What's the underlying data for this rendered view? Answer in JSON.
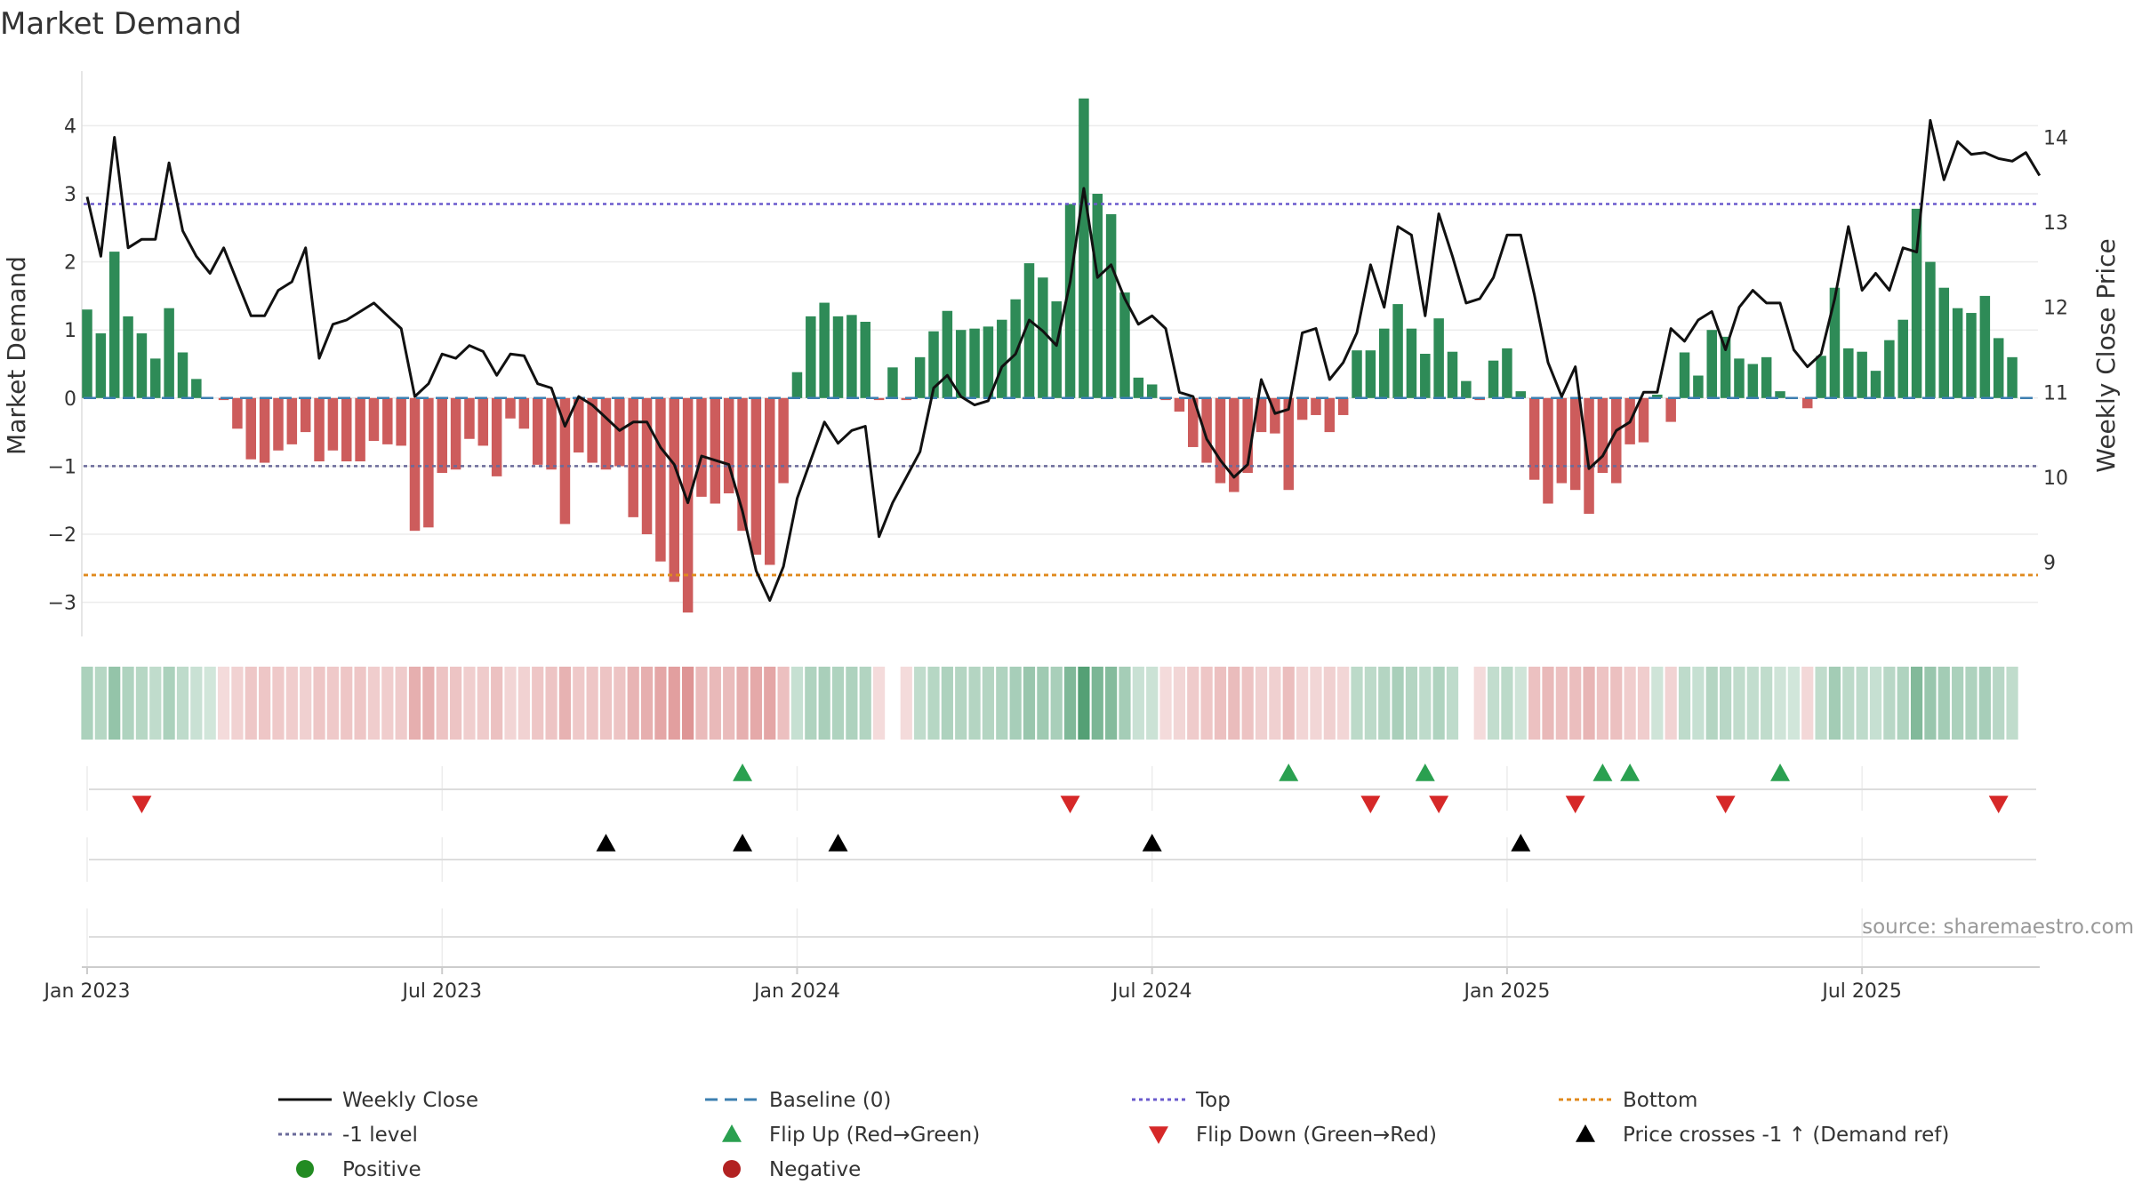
{
  "chart_data": {
    "type": "bar+line",
    "title": "Market Demand",
    "ylabel_left": "Market Demand",
    "ylabel_right": "Weekly Close Price",
    "ylim_left": [
      -3.5,
      4.5
    ],
    "ylim_right": [
      8.4,
      14.7
    ],
    "yticks_left": [
      4,
      3,
      2,
      1,
      0,
      -1,
      -2,
      -3
    ],
    "yticks_left_labels": [
      "4",
      "3",
      "2",
      "1",
      "0",
      "−1",
      "−2",
      "−3"
    ],
    "yticks_right": [
      14,
      13,
      12,
      11,
      10,
      9
    ],
    "x_tick_labels": [
      "Jan 2023",
      "Jul 2023",
      "Jan 2024",
      "Jul 2024",
      "Jan 2025",
      "Jul 2025"
    ],
    "x_tick_weeks": [
      0,
      26,
      52,
      78,
      104,
      130
    ],
    "reference_lines": {
      "top": 2.85,
      "minus_one": -1.0,
      "bottom": -2.6,
      "baseline": 0
    },
    "week_offset": -2,
    "demand": [
      1.3,
      0.95,
      2.15,
      1.2,
      0.95,
      0.58,
      1.32,
      0.67,
      0.28,
      0,
      -0.03,
      -0.45,
      -0.9,
      -0.95,
      -0.77,
      -0.68,
      -0.5,
      -0.93,
      -0.77,
      -0.93,
      -0.93,
      -0.63,
      -0.68,
      -0.7,
      -1.95,
      -1.9,
      -1.1,
      -1.05,
      -0.6,
      -0.7,
      -1.15,
      -0.3,
      -0.45,
      -0.98,
      -1.05,
      -1.85,
      -0.8,
      -0.95,
      -1.05,
      -1.0,
      -1.75,
      -2.0,
      -2.4,
      -2.7,
      -3.15,
      -1.45,
      -1.55,
      -1.4,
      -1.95,
      -2.3,
      -2.45,
      -1.25,
      0.38,
      1.2,
      1.4,
      1.2,
      1.22,
      1.12,
      -0.03,
      0.45,
      -0.03,
      0.6,
      0.98,
      1.28,
      1.0,
      1.02,
      1.05,
      1.15,
      1.45,
      1.98,
      1.77,
      1.42,
      2.85,
      4.4,
      3.0,
      2.7,
      1.55,
      0.3,
      0.2,
      -0.03,
      -0.2,
      -0.72,
      -0.95,
      -1.25,
      -1.38,
      -1.1,
      -0.5,
      -0.52,
      -1.35,
      -0.32,
      -0.25,
      -0.5,
      -0.25,
      0.7,
      0.7,
      1.02,
      1.38,
      1.02,
      0.65,
      1.17,
      0.68,
      0.25,
      -0.03,
      0.55,
      0.73,
      0.1,
      -1.2,
      -1.55,
      -1.25,
      -1.35,
      -1.7,
      -1.1,
      -1.25,
      -0.68,
      -0.65,
      0.05,
      -0.35,
      0.67,
      0.33,
      1.0,
      0.9,
      0.58,
      0.5,
      0.6,
      0.1,
      0,
      -0.15,
      0.62,
      1.62,
      0.73,
      0.68,
      0.4,
      0.85,
      1.15,
      2.78,
      2.0,
      1.62,
      1.32,
      1.25,
      1.5,
      0.88,
      0.6
    ],
    "price": [
      13.3,
      12.6,
      14.0,
      12.7,
      12.8,
      12.8,
      13.7,
      12.9,
      12.6,
      12.4,
      12.7,
      12.3,
      11.9,
      11.9,
      12.2,
      12.3,
      12.7,
      11.4,
      11.8,
      11.85,
      11.95,
      12.05,
      11.9,
      11.75,
      10.95,
      11.1,
      11.45,
      11.4,
      11.55,
      11.48,
      11.2,
      11.45,
      11.43,
      11.1,
      11.05,
      10.6,
      10.95,
      10.85,
      10.7,
      10.55,
      10.65,
      10.65,
      10.35,
      10.15,
      9.7,
      10.25,
      10.2,
      10.15,
      9.6,
      8.9,
      8.55,
      8.95,
      9.75,
      10.2,
      10.65,
      10.4,
      10.55,
      10.6,
      9.3,
      9.7,
      10.0,
      10.3,
      11.05,
      11.2,
      10.95,
      10.85,
      10.9,
      11.3,
      11.45,
      11.85,
      11.72,
      11.55,
      12.3,
      13.4,
      12.35,
      12.5,
      12.1,
      11.8,
      11.9,
      11.75,
      11.0,
      10.95,
      10.45,
      10.2,
      10.0,
      10.15,
      11.15,
      10.75,
      10.8,
      11.7,
      11.75,
      11.15,
      11.35,
      11.7,
      12.5,
      12.0,
      12.95,
      12.85,
      11.9,
      13.1,
      12.6,
      12.05,
      12.1,
      12.35,
      12.85,
      12.85,
      12.15,
      11.35,
      10.95,
      11.3,
      10.1,
      10.25,
      10.55,
      10.65,
      11.0,
      11.0,
      11.75,
      11.6,
      11.85,
      11.95,
      11.5,
      12.0,
      12.2,
      12.05,
      12.05,
      11.5,
      11.3,
      11.45,
      12.1,
      12.95,
      12.2,
      12.4,
      12.2,
      12.7,
      12.65,
      14.2,
      13.5,
      13.95,
      13.8,
      13.82,
      13.75,
      13.72,
      13.82,
      13.55
    ],
    "heat_gaps": [
      59,
      101
    ],
    "flip_up_weeks": [
      50,
      90,
      100,
      113,
      115,
      126
    ],
    "flip_down_weeks": [
      6,
      74,
      96,
      101,
      111,
      122,
      142
    ],
    "price_cross_weeks": [
      40,
      50,
      57,
      80,
      107
    ],
    "colors": {
      "positive": "#2e8b57",
      "negative": "#cd5c5c",
      "price": "#111111",
      "top": "#6a5acd",
      "minus_one": "#6a6a9a",
      "bottom": "#e08a1e",
      "baseline": "#3d7fb0",
      "flip_up": "#2aa050",
      "flip_down": "#d62828",
      "cross": "#000000",
      "positive_dot": "#228b22",
      "negative_dot": "#b22222"
    },
    "source": "source: sharemaestro.com",
    "legend": [
      {
        "label": "Weekly Close",
        "marker": "solid-line"
      },
      {
        "label": "Baseline (0)",
        "marker": "dashed-line"
      },
      {
        "label": "Top",
        "marker": "dotted-line"
      },
      {
        "label": "Bottom",
        "marker": "dotted-line"
      },
      {
        "label": "-1 level",
        "marker": "dotted-line"
      },
      {
        "label": "Flip Up (Red→Green)",
        "marker": "triangle-up"
      },
      {
        "label": "Flip Down (Green→Red)",
        "marker": "triangle-down"
      },
      {
        "label": "Price crosses -1 ↑ (Demand ref)",
        "marker": "triangle-up"
      },
      {
        "label": "Positive",
        "marker": "circle"
      },
      {
        "label": "Negative",
        "marker": "circle"
      }
    ]
  }
}
